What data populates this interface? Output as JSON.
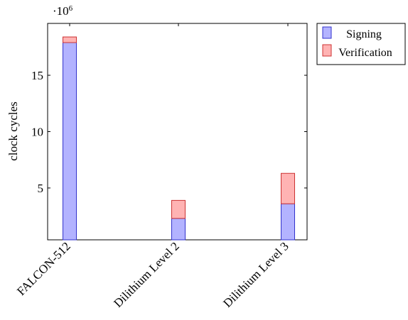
{
  "chart_data": {
    "type": "bar",
    "stacked": true,
    "categories": [
      "FALCON-512",
      "Dilithium Level 2",
      "Dilithium Level 3"
    ],
    "series": [
      {
        "name": "Signing",
        "values": [
          17500000,
          1900000,
          3200000
        ],
        "fill": "#b3b3ff",
        "stroke": "#3333cc"
      },
      {
        "name": "Verification",
        "values": [
          500000,
          1600000,
          2700000
        ],
        "fill": "#ffb3b3",
        "stroke": "#cc3333"
      }
    ],
    "xlabel": "",
    "ylabel": "clock cycles",
    "y_scale_label": "·10",
    "y_scale_exponent": "6",
    "ylim": [
      400000,
      19600000
    ],
    "yticks": [
      5000000,
      10000000,
      15000000
    ],
    "ytick_labels": [
      "5",
      "10",
      "15"
    ],
    "legend_position": "outside-top-right",
    "grid": false
  }
}
